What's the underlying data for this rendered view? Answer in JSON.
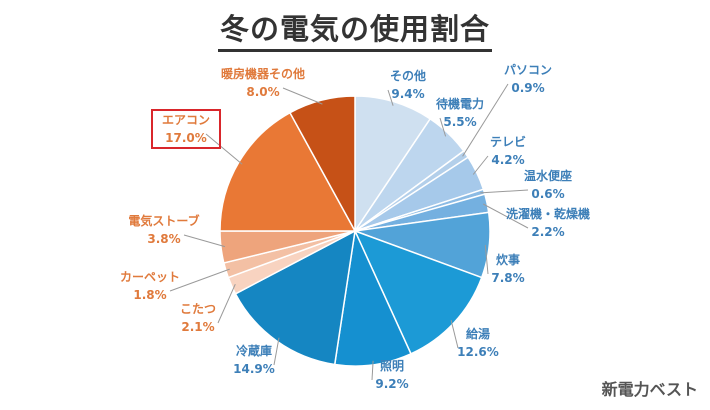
{
  "chart_data": {
    "type": "pie",
    "title": "冬の電気の使用割合",
    "unit": "%",
    "slices": [
      {
        "label": "その他",
        "value": 9.4,
        "display": "9.4%",
        "color": "#cfe0f0",
        "label_color": "#3d7fb8"
      },
      {
        "label": "待機電力",
        "value": 5.5,
        "display": "5.5%",
        "color": "#bdd6ee",
        "label_color": "#3d7fb8"
      },
      {
        "label": "パソコン",
        "value": 0.9,
        "display": "0.9%",
        "color": "#b3cfea",
        "label_color": "#3d7fb8"
      },
      {
        "label": "テレビ",
        "value": 4.2,
        "display": "4.2%",
        "color": "#a6c9ea",
        "label_color": "#3d7fb8"
      },
      {
        "label": "温水便座",
        "value": 0.6,
        "display": "0.6%",
        "color": "#8cbbe4",
        "label_color": "#3d7fb8"
      },
      {
        "label": "洗濯機・乾燥機",
        "value": 2.2,
        "display": "2.2%",
        "color": "#74b0e0",
        "label_color": "#3d7fb8"
      },
      {
        "label": "炊事",
        "value": 7.8,
        "display": "7.8%",
        "color": "#52a3d8",
        "label_color": "#3d7fb8"
      },
      {
        "label": "給湯",
        "value": 12.6,
        "display": "12.6%",
        "color": "#1c9ad6",
        "label_color": "#3d7fb8"
      },
      {
        "label": "照明",
        "value": 9.2,
        "display": "9.2%",
        "color": "#1590d0",
        "label_color": "#3d7fb8"
      },
      {
        "label": "冷蔵庫",
        "value": 14.9,
        "display": "14.9%",
        "color": "#1586c2",
        "label_color": "#3d7fb8"
      },
      {
        "label": "こたつ",
        "value": 2.1,
        "display": "2.1%",
        "color": "#f8d3c0",
        "label_color": "#e07a3c"
      },
      {
        "label": "カーペット",
        "value": 1.8,
        "display": "1.8%",
        "color": "#f3c0a4",
        "label_color": "#e07a3c"
      },
      {
        "label": "電気ストーブ",
        "value": 3.8,
        "display": "3.8%",
        "color": "#eea47c",
        "label_color": "#e07a3c"
      },
      {
        "label": "エアコン",
        "value": 17.0,
        "display": "17.0%",
        "color": "#e97835",
        "label_color": "#e07a3c",
        "highlight": true
      },
      {
        "label": "暖房機器その他",
        "value": 8.0,
        "display": "8.0%",
        "color": "#c65117",
        "label_color": "#e07a3c"
      }
    ],
    "highlight_color": "#d9262b",
    "legend": "none"
  },
  "source": "新電力ベスト"
}
